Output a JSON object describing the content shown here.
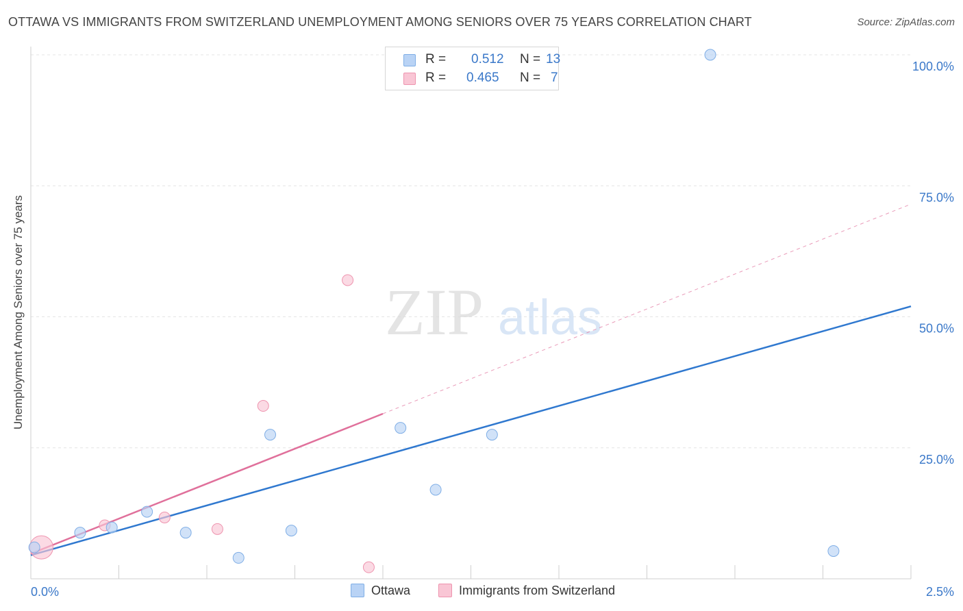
{
  "header": {
    "title": "OTTAWA VS IMMIGRANTS FROM SWITZERLAND UNEMPLOYMENT AMONG SENIORS OVER 75 YEARS CORRELATION CHART",
    "source": "Source: ZipAtlas.com"
  },
  "watermark": {
    "zip": "ZIP",
    "atlas": "atlas"
  },
  "legend": {
    "r_label": "R =",
    "n_label": "N =",
    "rows": [
      {
        "r": "0.512",
        "n": "13"
      },
      {
        "r": "0.465",
        "n": "7"
      }
    ]
  },
  "colors": {
    "ottawa_fill": "#b9d3f5",
    "ottawa_stroke": "#7faee6",
    "ottawa_line": "#2f78cf",
    "swiss_fill": "#f9c6d5",
    "swiss_stroke": "#ee93ae",
    "swiss_line": "#e0709b",
    "grid": "#e4e4e4",
    "axis_text": "#3a78c9"
  },
  "chart_data": {
    "type": "scatter",
    "title": "OTTAWA VS IMMIGRANTS FROM SWITZERLAND UNEMPLOYMENT AMONG SENIORS OVER 75 YEARS CORRELATION CHART",
    "xlabel": "",
    "ylabel": "Unemployment Among Seniors over 75 years",
    "xlim": [
      0,
      2.5
    ],
    "ylim": [
      0,
      100
    ],
    "x_tick_labels": [
      "0.0%",
      "2.5%"
    ],
    "y_ticks": [
      25,
      50,
      75,
      100
    ],
    "y_tick_labels": [
      "25.0%",
      "50.0%",
      "75.0%",
      "100.0%"
    ],
    "grid": true,
    "legend_position": "top-center",
    "series": [
      {
        "name": "Ottawa",
        "r": 0.512,
        "n": 13,
        "points": [
          {
            "x": 0.01,
            "y": 6.0
          },
          {
            "x": 0.14,
            "y": 8.8
          },
          {
            "x": 0.23,
            "y": 9.8
          },
          {
            "x": 0.33,
            "y": 12.8
          },
          {
            "x": 0.44,
            "y": 8.8
          },
          {
            "x": 0.59,
            "y": 4.0
          },
          {
            "x": 0.68,
            "y": 27.5
          },
          {
            "x": 0.74,
            "y": 9.2
          },
          {
            "x": 1.05,
            "y": 28.8
          },
          {
            "x": 1.15,
            "y": 17.0
          },
          {
            "x": 1.31,
            "y": 27.5
          },
          {
            "x": 1.93,
            "y": 100.0
          },
          {
            "x": 2.28,
            "y": 5.3
          }
        ],
        "trend": {
          "x0": 0.0,
          "y0": 4.5,
          "x1": 2.5,
          "y1": 52.0
        }
      },
      {
        "name": "Immigrants from Switzerland",
        "r": 0.465,
        "n": 7,
        "points": [
          {
            "x": 0.03,
            "y": 6.0,
            "size": "large"
          },
          {
            "x": 0.21,
            "y": 10.2
          },
          {
            "x": 0.38,
            "y": 11.7
          },
          {
            "x": 0.53,
            "y": 9.5
          },
          {
            "x": 0.66,
            "y": 33.0
          },
          {
            "x": 0.9,
            "y": 57.0
          },
          {
            "x": 0.96,
            "y": 2.2
          }
        ],
        "trend": {
          "x0": 0.0,
          "y0": 4.8,
          "x1": 1.0,
          "y1": 31.5,
          "dashed_to_x": 2.5,
          "dashed_to_y": 71.5
        }
      }
    ]
  }
}
